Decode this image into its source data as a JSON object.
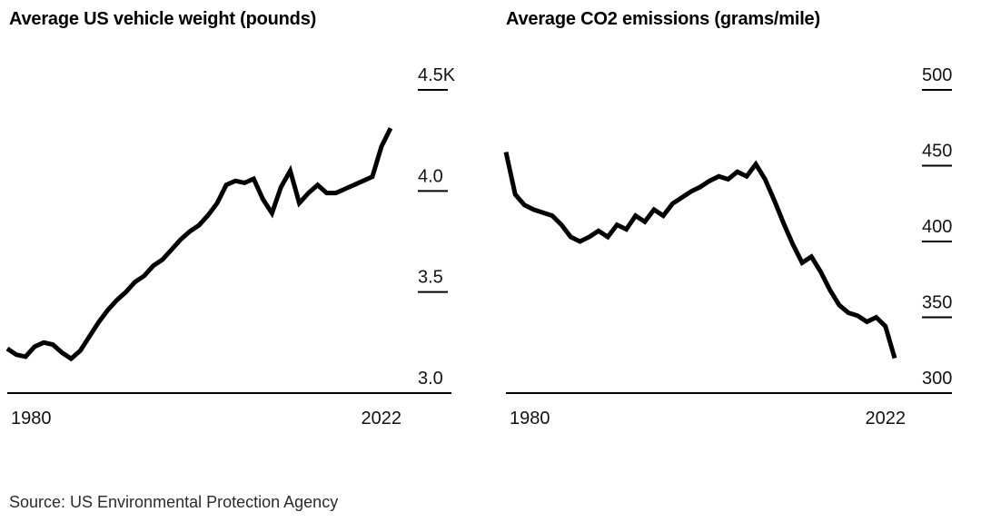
{
  "source": "Source: US Environmental Protection Agency",
  "chart_data": [
    {
      "type": "line",
      "title": "Average US vehicle weight (pounds)",
      "values_unit": "thousands of pounds",
      "line_color": "#000000",
      "grid": false,
      "xlim": [
        1980,
        2022
      ],
      "ylim": [
        3.0,
        4.5
      ],
      "x_tick_labels": [
        "1980",
        "2022"
      ],
      "y_ticks": [
        {
          "value": 4.5,
          "label": "4.5K"
        },
        {
          "value": 4.0,
          "label": "4.0"
        },
        {
          "value": 3.5,
          "label": "3.5"
        },
        {
          "value": 3.0,
          "label": "3.0"
        }
      ],
      "years": [
        1980,
        1981,
        1982,
        1983,
        1984,
        1985,
        1986,
        1987,
        1988,
        1989,
        1990,
        1991,
        1992,
        1993,
        1994,
        1995,
        1996,
        1997,
        1998,
        1999,
        2000,
        2001,
        2002,
        2003,
        2004,
        2005,
        2006,
        2007,
        2008,
        2009,
        2010,
        2011,
        2012,
        2013,
        2014,
        2015,
        2016,
        2017,
        2018,
        2019,
        2020,
        2021,
        2022
      ],
      "values": [
        3.22,
        3.19,
        3.18,
        3.23,
        3.25,
        3.24,
        3.2,
        3.17,
        3.21,
        3.28,
        3.35,
        3.41,
        3.46,
        3.5,
        3.55,
        3.58,
        3.63,
        3.66,
        3.71,
        3.76,
        3.8,
        3.83,
        3.88,
        3.94,
        4.03,
        4.05,
        4.04,
        4.06,
        3.96,
        3.89,
        4.02,
        4.1,
        3.94,
        3.99,
        4.03,
        3.99,
        3.99,
        4.01,
        4.03,
        4.05,
        4.07,
        4.22,
        4.31
      ]
    },
    {
      "type": "line",
      "title": "Average CO2 emissions (grams/mile)",
      "values_unit": "grams per mile",
      "line_color": "#000000",
      "grid": false,
      "xlim": [
        1980,
        2022
      ],
      "ylim": [
        300,
        500
      ],
      "x_tick_labels": [
        "1980",
        "2022"
      ],
      "y_ticks": [
        {
          "value": 500,
          "label": "500"
        },
        {
          "value": 450,
          "label": "450"
        },
        {
          "value": 400,
          "label": "400"
        },
        {
          "value": 350,
          "label": "350"
        },
        {
          "value": 300,
          "label": "300"
        }
      ],
      "years": [
        1980,
        1981,
        1982,
        1983,
        1984,
        1985,
        1986,
        1987,
        1988,
        1989,
        1990,
        1991,
        1992,
        1993,
        1994,
        1995,
        1996,
        1997,
        1998,
        1999,
        2000,
        2001,
        2002,
        2003,
        2004,
        2005,
        2006,
        2007,
        2008,
        2009,
        2010,
        2011,
        2012,
        2013,
        2014,
        2015,
        2016,
        2017,
        2018,
        2019,
        2020,
        2021,
        2022
      ],
      "values": [
        459,
        431,
        424,
        421,
        419,
        417,
        411,
        403,
        400,
        403,
        407,
        403,
        411,
        408,
        417,
        413,
        421,
        417,
        425,
        429,
        433,
        436,
        440,
        443,
        441,
        446,
        443,
        451,
        441,
        427,
        412,
        398,
        386,
        390,
        380,
        368,
        358,
        353,
        351,
        347,
        350,
        344,
        323
      ]
    }
  ]
}
